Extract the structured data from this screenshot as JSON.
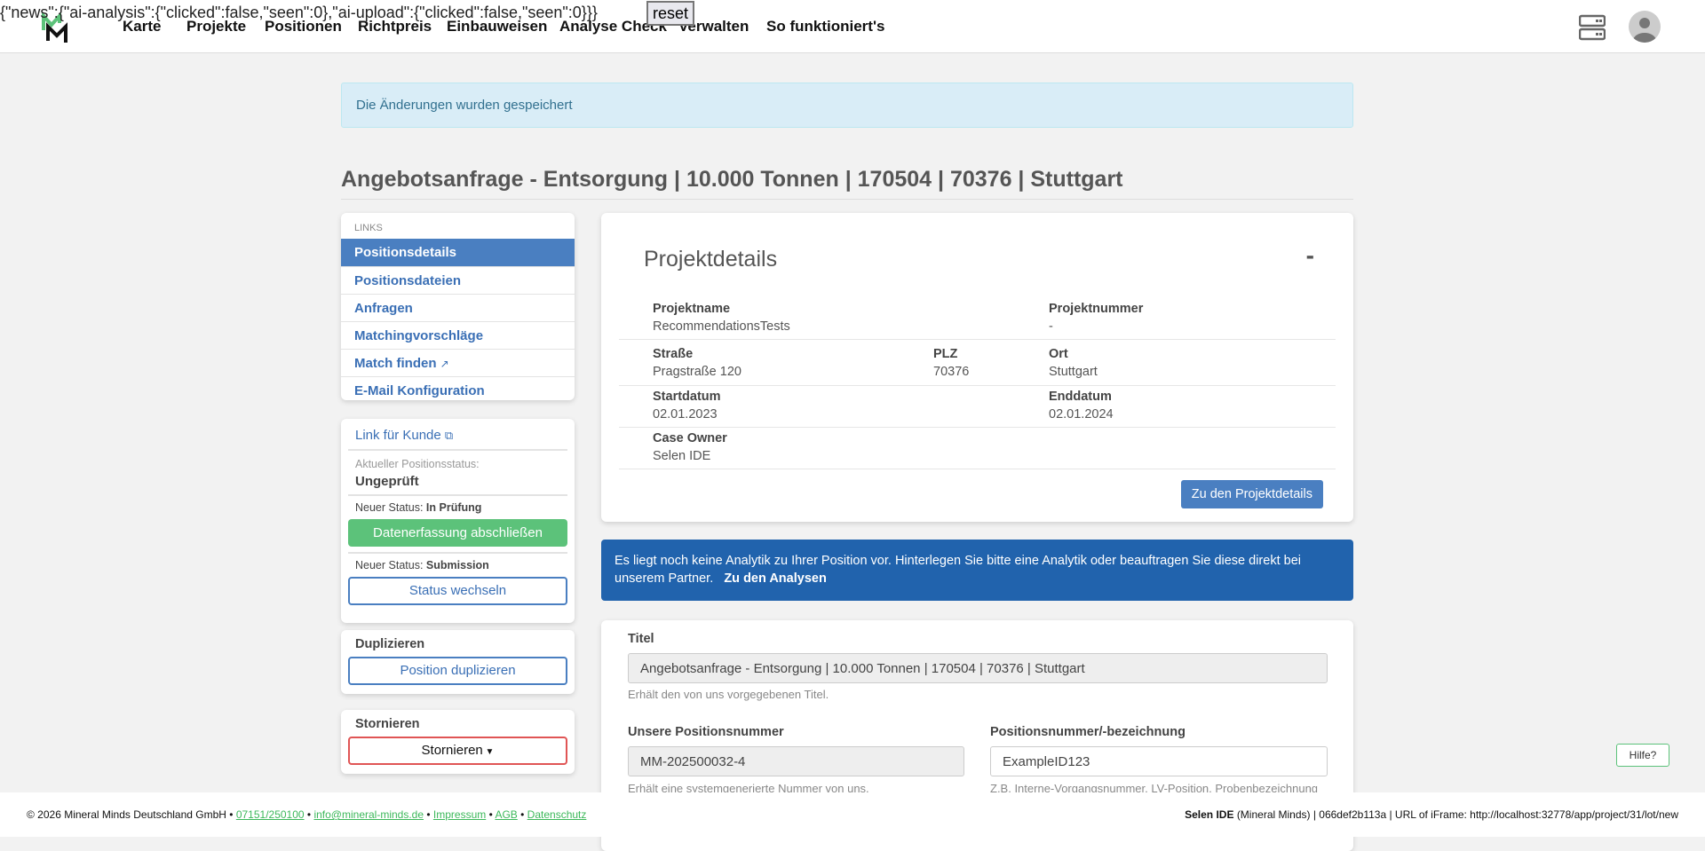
{
  "debug": {
    "text": "{\"news\":{\"ai-analysis\":{\"clicked\":false,\"seen\":0},\"ai-upload\":{\"clicked\":false,\"seen\":0}}}",
    "reset_label": "reset"
  },
  "nav": {
    "items": [
      "Karte",
      "Projekte",
      "Positionen",
      "Richtpreis",
      "Einbauweisen",
      "Analyse Check",
      "Verwalten",
      "So funktioniert's"
    ]
  },
  "alert": {
    "text": "Die Änderungen wurden gespeichert"
  },
  "page_title": "Angebotsanfrage - Entsorgung | 10.000 Tonnen | 170504 | 70376 | Stuttgart",
  "sidebar": {
    "links_header": "LINKS",
    "links": [
      "Positionsdetails",
      "Positionsdateien",
      "Anfragen",
      "Matchingvorschläge",
      "Match finden",
      "E-Mail Konfiguration"
    ],
    "customer_link": "Link für Kunde",
    "current_status_label": "Aktueller Positionsstatus:",
    "current_status": "Ungeprüft",
    "new_status_prefix": "Neuer Status:",
    "new_status_1": "In Prüfung",
    "complete_button": "Datenerfassung abschließen",
    "new_status_2": "Submission",
    "change_status_button": "Status wechseln",
    "duplicate_title": "Duplizieren",
    "duplicate_button": "Position duplizieren",
    "cancel_title": "Stornieren",
    "cancel_button": "Stornieren"
  },
  "project": {
    "title": "Projektdetails",
    "collapse": "-",
    "name_label": "Projektname",
    "name": "RecommendationsTests",
    "number_label": "Projektnummer",
    "number": "-",
    "street_label": "Straße",
    "street": "Pragstraße 120",
    "zip_label": "PLZ",
    "zip": "70376",
    "city_label": "Ort",
    "city": "Stuttgart",
    "start_label": "Startdatum",
    "start": "02.01.2023",
    "end_label": "Enddatum",
    "end": "02.01.2024",
    "owner_label": "Case Owner",
    "owner": "Selen IDE",
    "button": "Zu den Projektdetails"
  },
  "analytics": {
    "text": "Es liegt noch keine Analytik zu Ihrer Position vor. Hinterlegen Sie bitte eine Analytik oder beauftragen Sie diese direkt bei unserem Partner.",
    "link": "Zu den Analysen"
  },
  "form": {
    "title_label": "Titel",
    "title_value": "Angebotsanfrage - Entsorgung | 10.000 Tonnen | 170504 | 70376 | Stuttgart",
    "title_help": "Erhält den von uns vorgegebenen Titel.",
    "our_number_label": "Unsere Positionsnummer",
    "our_number": "MM-202500032-4",
    "our_number_help": "Erhält eine systemgenerierte Nummer von uns.",
    "pos_label": "Positionsnummer/-bezeichnung",
    "pos_value": "ExampleID123",
    "pos_help": "Z.B. Interne-Vorgangsnummer, LV-Position, Probenbezeichnung"
  },
  "help_button": "Hilfe?",
  "footer": {
    "copyright": "© 2026 Mineral Minds Deutschland GmbH",
    "phone": "07151/250100",
    "email": "info@mineral-minds.de",
    "impressum": "Impressum",
    "agb": "AGB",
    "datenschutz": "Datenschutz",
    "user": "Selen IDE",
    "right_text": "(Mineral Minds) | 066def2b113a | URL of iFrame: http://localhost:32778/app/project/31/lot/new"
  },
  "colors": {
    "primary": "#4a7fc1",
    "success": "#5cc27a",
    "danger": "#e05555",
    "info_bg": "#2163ad",
    "brand_green": "#3cb85a"
  }
}
